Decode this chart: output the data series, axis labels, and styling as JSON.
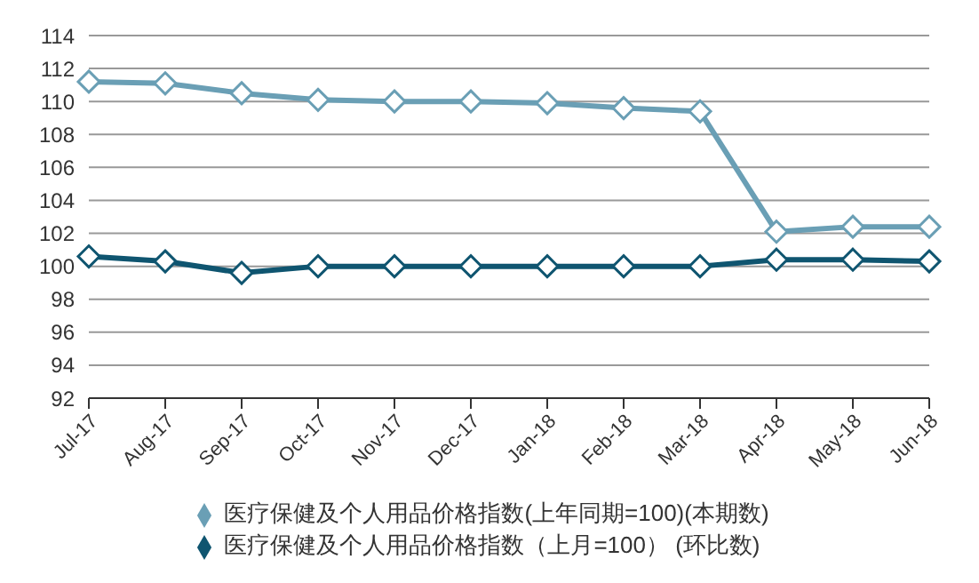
{
  "chart_data": {
    "type": "line",
    "categories": [
      "Jul-17",
      "Aug-17",
      "Sep-17",
      "Oct-17",
      "Nov-17",
      "Dec-17",
      "Jan-18",
      "Feb-18",
      "Mar-18",
      "Apr-18",
      "May-18",
      "Jun-18"
    ],
    "series": [
      {
        "name": "医疗保健及个人用品价格指数(上年同期=100)(本期数)",
        "color": "#6a9fb5",
        "values": [
          111.2,
          111.1,
          110.5,
          110.1,
          110.0,
          110.0,
          109.9,
          109.6,
          109.4,
          102.1,
          102.4,
          102.4
        ]
      },
      {
        "name": "医疗保健及个人用品价格指数（上月=100）  (环比数)",
        "color": "#0f5570",
        "values": [
          100.6,
          100.3,
          99.6,
          100.0,
          100.0,
          100.0,
          100.0,
          100.0,
          100.0,
          100.4,
          100.4,
          100.3
        ]
      }
    ],
    "ylim": [
      92,
      114
    ],
    "yticks": [
      92,
      94,
      96,
      98,
      100,
      102,
      104,
      106,
      108,
      110,
      112,
      114
    ],
    "grid": "y",
    "legend": "bottom",
    "marker": "diamond",
    "line_style": "solid"
  }
}
